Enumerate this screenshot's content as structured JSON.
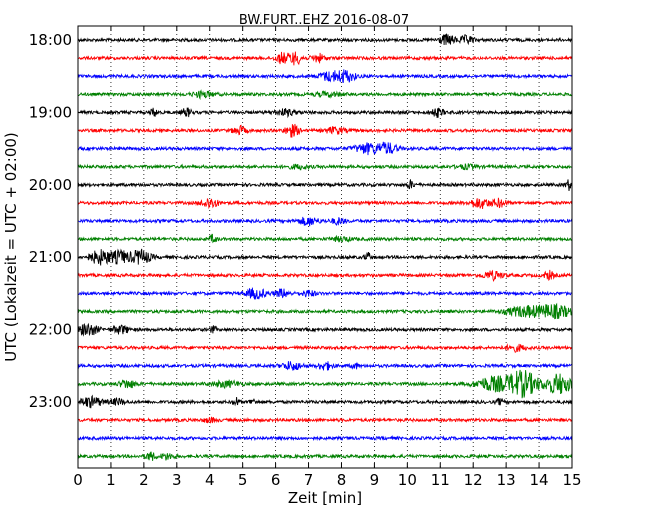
{
  "chart_data": {
    "type": "line",
    "title": "BW.FURT..EHZ 2016-08-07",
    "xlabel": "Zeit  [min]",
    "ylabel": "UTC (Lokalzeit = UTC + 02:00)",
    "xlim": [
      0,
      15
    ],
    "xticks": [
      "0",
      "1",
      "2",
      "3",
      "4",
      "5",
      "6",
      "7",
      "8",
      "9",
      "10",
      "11",
      "12",
      "13",
      "14",
      "15"
    ],
    "yticks": [
      "18:00",
      "19:00",
      "20:00",
      "21:00",
      "22:00",
      "23:00"
    ],
    "grid": "vertical-dotted",
    "trace_colors": [
      "#000000",
      "#ff0000",
      "#0000ff",
      "#008000"
    ],
    "series": [
      {
        "start": "18:00",
        "bursts": [
          [
            11.2,
            0.25,
            5
          ],
          [
            11.8,
            0.2,
            4
          ]
        ]
      },
      {
        "start": "18:15",
        "bursts": [
          [
            6.2,
            0.2,
            5
          ],
          [
            6.6,
            0.2,
            6
          ],
          [
            7.3,
            0.2,
            4
          ]
        ]
      },
      {
        "start": "18:30",
        "bursts": [
          [
            7.6,
            0.3,
            4
          ],
          [
            8.1,
            0.3,
            6
          ]
        ]
      },
      {
        "start": "18:45",
        "bursts": [
          [
            3.8,
            0.3,
            3
          ],
          [
            7.6,
            0.4,
            2
          ]
        ]
      },
      {
        "start": "19:00",
        "bursts": [
          [
            2.3,
            0.1,
            4
          ],
          [
            3.3,
            0.15,
            4
          ],
          [
            6.3,
            0.3,
            3
          ],
          [
            10.9,
            0.2,
            4
          ]
        ]
      },
      {
        "start": "19:15",
        "bursts": [
          [
            4.9,
            0.2,
            4
          ],
          [
            6.5,
            0.2,
            6
          ],
          [
            7.8,
            0.3,
            3
          ]
        ]
      },
      {
        "start": "19:30",
        "bursts": [
          [
            8.8,
            0.4,
            5
          ],
          [
            9.4,
            0.3,
            5
          ]
        ]
      },
      {
        "start": "19:45",
        "bursts": [
          [
            6.7,
            0.3,
            2
          ],
          [
            11.8,
            0.3,
            2
          ]
        ]
      },
      {
        "start": "20:00",
        "bursts": [
          [
            10.1,
            0.1,
            4
          ],
          [
            14.9,
            0.1,
            5
          ]
        ]
      },
      {
        "start": "20:15",
        "bursts": [
          [
            4.0,
            0.25,
            5
          ],
          [
            12.2,
            0.3,
            5
          ],
          [
            12.8,
            0.2,
            4
          ]
        ]
      },
      {
        "start": "20:30",
        "bursts": [
          [
            7.0,
            0.3,
            4
          ],
          [
            7.9,
            0.2,
            3
          ]
        ]
      },
      {
        "start": "20:45",
        "bursts": [
          [
            4.1,
            0.1,
            4
          ],
          [
            8.0,
            0.3,
            2
          ]
        ]
      },
      {
        "start": "21:00",
        "bursts": [
          [
            0.7,
            0.35,
            7
          ],
          [
            1.3,
            0.25,
            6
          ],
          [
            1.9,
            0.3,
            7
          ],
          [
            8.8,
            0.1,
            4
          ]
        ]
      },
      {
        "start": "21:15",
        "bursts": [
          [
            12.6,
            0.3,
            4
          ],
          [
            14.3,
            0.15,
            4
          ]
        ]
      },
      {
        "start": "21:30",
        "bursts": [
          [
            5.4,
            0.3,
            5
          ],
          [
            6.2,
            0.2,
            4
          ],
          [
            7.0,
            0.2,
            3
          ]
        ]
      },
      {
        "start": "21:45",
        "bursts": [
          [
            13.6,
            0.6,
            5
          ],
          [
            14.5,
            0.5,
            6
          ]
        ]
      },
      {
        "start": "22:00",
        "bursts": [
          [
            0.3,
            0.3,
            6
          ],
          [
            1.3,
            0.25,
            4
          ],
          [
            4.1,
            0.1,
            3
          ]
        ]
      },
      {
        "start": "22:15",
        "bursts": [
          [
            13.3,
            0.3,
            3
          ]
        ]
      },
      {
        "start": "22:30",
        "bursts": [
          [
            6.5,
            0.3,
            4
          ],
          [
            7.5,
            0.2,
            4
          ],
          [
            8.4,
            0.1,
            3
          ]
        ]
      },
      {
        "start": "22:45",
        "bursts": [
          [
            1.5,
            0.25,
            4
          ],
          [
            4.5,
            0.4,
            3
          ],
          [
            12.6,
            0.5,
            7
          ],
          [
            13.5,
            0.45,
            13
          ],
          [
            14.6,
            0.4,
            10
          ]
        ]
      },
      {
        "start": "23:00",
        "bursts": [
          [
            0.4,
            0.35,
            5
          ],
          [
            1.2,
            0.2,
            3
          ],
          [
            4.8,
            0.1,
            4
          ],
          [
            5.3,
            0.1,
            3
          ],
          [
            12.8,
            0.1,
            3
          ]
        ]
      },
      {
        "start": "23:15",
        "bursts": [
          [
            4.0,
            0.2,
            2
          ]
        ]
      },
      {
        "start": "23:30",
        "bursts": []
      },
      {
        "start": "23:45",
        "bursts": [
          [
            2.2,
            0.15,
            4
          ],
          [
            2.7,
            0.2,
            3
          ]
        ]
      }
    ]
  }
}
